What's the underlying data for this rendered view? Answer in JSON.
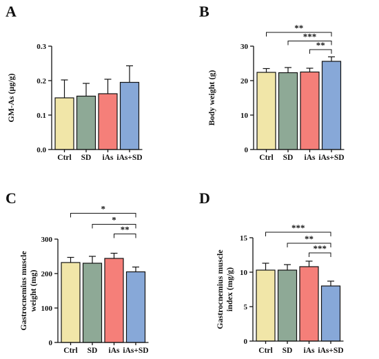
{
  "colors": {
    "Ctrl": "#f1e6a8",
    "SD": "#8ea996",
    "iAs": "#f57f79",
    "iAs+SD": "#87a8d8"
  },
  "chart_data": [
    {
      "panel": "A",
      "type": "bar",
      "categories": [
        "Ctrl",
        "SD",
        "iAs",
        "iAs+SD"
      ],
      "values": [
        0.15,
        0.155,
        0.162,
        0.195
      ],
      "errors": [
        0.052,
        0.037,
        0.042,
        0.048
      ],
      "ylabel": "GM-As (μg/g)",
      "ylim": [
        0,
        0.3
      ],
      "yticks": [
        0.0,
        0.1,
        0.2,
        0.3
      ],
      "ytick_labels": [
        "0.0",
        "0.1",
        "0.2",
        "0.3"
      ],
      "significance": []
    },
    {
      "panel": "B",
      "type": "bar",
      "categories": [
        "Ctrl",
        "SD",
        "iAs",
        "iAs+SD"
      ],
      "values": [
        22.4,
        22.3,
        22.5,
        25.6
      ],
      "errors": [
        1.1,
        1.5,
        1.1,
        1.3
      ],
      "ylabel": "Body weight (g)",
      "ylim": [
        0,
        30
      ],
      "yticks": [
        0,
        10,
        20,
        30
      ],
      "ytick_labels": [
        "0",
        "10",
        "20",
        "30"
      ],
      "significance": [
        {
          "from": "Ctrl",
          "to": "iAs+SD",
          "label": "**",
          "level": 34
        },
        {
          "from": "SD",
          "to": "iAs+SD",
          "label": "***",
          "level": 31.5
        },
        {
          "from": "iAs",
          "to": "iAs+SD",
          "label": "**",
          "level": 29
        }
      ]
    },
    {
      "panel": "C",
      "type": "bar",
      "categories": [
        "Ctrl",
        "SD",
        "iAs",
        "iAs+SD"
      ],
      "values": [
        232,
        230,
        244,
        205
      ],
      "errors": [
        15,
        20,
        15,
        14
      ],
      "ylabel": "Gastrocnemius muscle weight (mg)",
      "ylabel_lines": [
        "Gastrocnemius muscle",
        "weight (mg)"
      ],
      "ylim": [
        0,
        300
      ],
      "yticks": [
        0,
        100,
        200,
        300
      ],
      "ytick_labels": [
        "0",
        "100",
        "200",
        "300"
      ],
      "significance": [
        {
          "from": "Ctrl",
          "to": "iAs+SD",
          "label": "*",
          "level": 375
        },
        {
          "from": "SD",
          "to": "iAs+SD",
          "label": "*",
          "level": 343
        },
        {
          "from": "iAs",
          "to": "iAs+SD",
          "label": "**",
          "level": 315
        }
      ]
    },
    {
      "panel": "D",
      "type": "bar",
      "categories": [
        "Ctrl",
        "SD",
        "iAs",
        "iAs+SD"
      ],
      "values": [
        10.3,
        10.3,
        10.8,
        8.0
      ],
      "errors": [
        1.0,
        0.8,
        0.8,
        0.7
      ],
      "ylabel": "Gastrocnemius muscle index (mg/g)",
      "ylabel_lines": [
        "Gastrocnemius muscle",
        "index (mg/g)"
      ],
      "ylim": [
        0,
        15
      ],
      "yticks": [
        0,
        5,
        10,
        15
      ],
      "ytick_labels": [
        "0",
        "5",
        "10",
        "15"
      ],
      "significance": [
        {
          "from": "Ctrl",
          "to": "iAs+SD",
          "label": "***",
          "level": 15.8
        },
        {
          "from": "SD",
          "to": "iAs+SD",
          "label": "**",
          "level": 14.2
        },
        {
          "from": "iAs",
          "to": "iAs+SD",
          "label": "***",
          "level": 12.8
        }
      ]
    }
  ]
}
